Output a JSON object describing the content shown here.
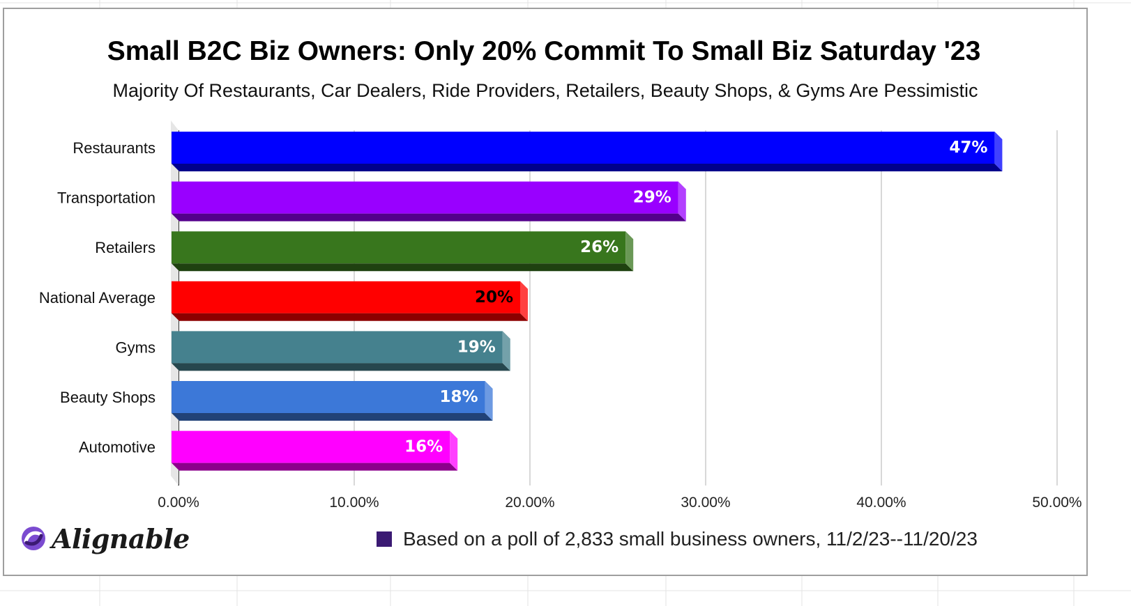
{
  "chart_data": {
    "type": "bar",
    "orientation": "horizontal",
    "title": "Small B2C Biz Owners: Only 20% Commit To Small Biz Saturday '23",
    "subtitle": "Majority Of Restaurants, Car Dealers, Ride Providers, Retailers, Beauty Shops, & Gyms Are Pessimistic",
    "categories": [
      "Restaurants",
      "Transportation",
      "Retailers",
      "National Average",
      "Gyms",
      "Beauty Shops",
      "Automotive"
    ],
    "values": [
      47,
      29,
      26,
      20,
      19,
      18,
      16
    ],
    "data_labels": [
      "47%",
      "29%",
      "26%",
      "20%",
      "19%",
      "18%",
      "16%"
    ],
    "colors": [
      "#0000ff",
      "#9900ff",
      "#38761d",
      "#ff0000",
      "#45818e",
      "#3c78d8",
      "#ff00ff"
    ],
    "label_colors": [
      "#ffffff",
      "#ffffff",
      "#ffffff",
      "#000000",
      "#ffffff",
      "#ffffff",
      "#ffffff"
    ],
    "xlim": [
      0,
      50
    ],
    "x_ticks": [
      "0.00%",
      "10.00%",
      "20.00%",
      "30.00%",
      "40.00%",
      "50.00%"
    ],
    "grid": true,
    "legend": "none",
    "style": "3d"
  },
  "branding": {
    "logo_text": "Alignable"
  },
  "footnote": {
    "text": "Based on a poll of 2,833 small business owners, 11/2/23--11/20/23",
    "swatch_color": "#3b1a73"
  }
}
